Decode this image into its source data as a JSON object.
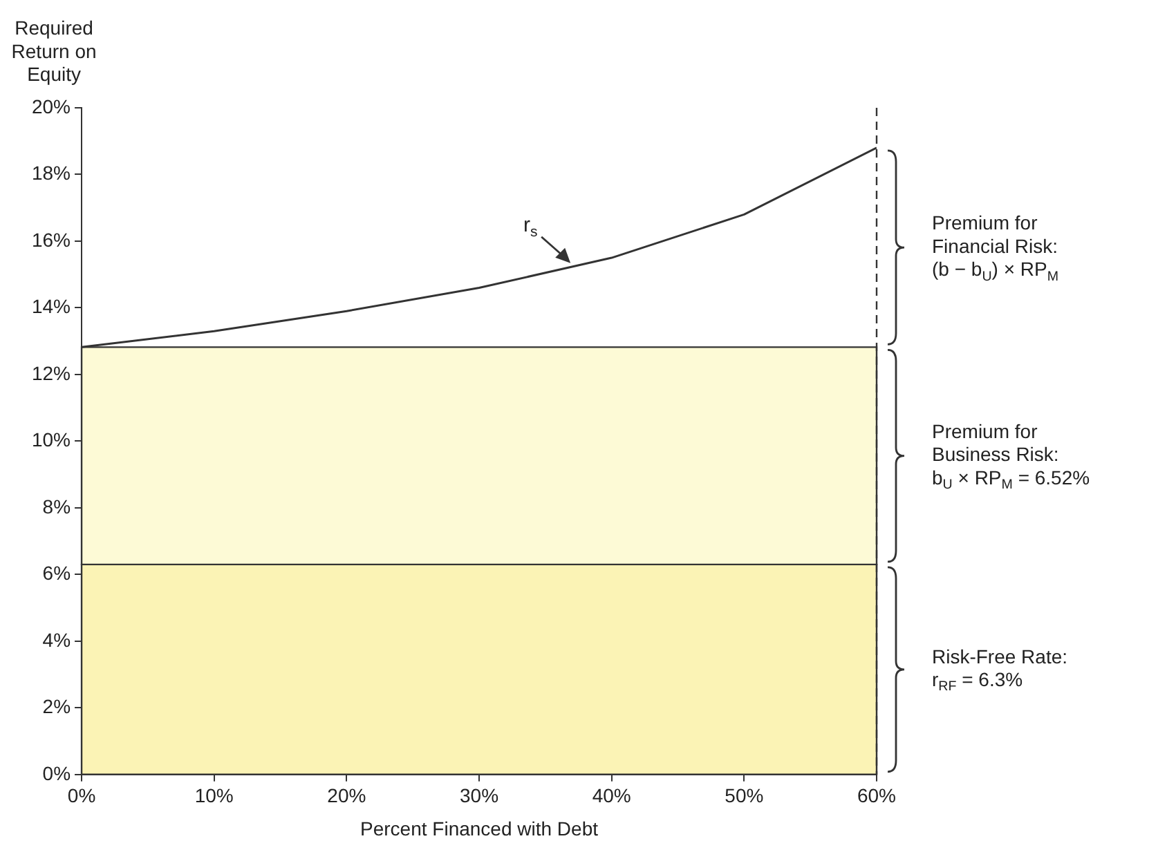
{
  "chart_data": {
    "type": "line",
    "xlabel": "Percent Financed with Debt",
    "ylabel": "Required\nReturn on\nEquity",
    "x": [
      0,
      10,
      20,
      30,
      40,
      50,
      60
    ],
    "series": [
      {
        "color": "#333333",
        "values": [
          12.82,
          13.3,
          13.9,
          14.6,
          15.5,
          16.8,
          18.8
        ]
      }
    ],
    "xlim": [
      0,
      60
    ],
    "ylim": [
      0,
      20
    ],
    "xticks": [
      {
        "value": 0,
        "label": "0%"
      },
      {
        "value": 10,
        "label": "10%"
      },
      {
        "value": 20,
        "label": "20%"
      },
      {
        "value": 30,
        "label": "30%"
      },
      {
        "value": 40,
        "label": "40%"
      },
      {
        "value": 50,
        "label": "50%"
      },
      {
        "value": 60,
        "label": "60%"
      }
    ],
    "yticks": [
      {
        "value": 0,
        "label": "0%"
      },
      {
        "value": 2,
        "label": "2%"
      },
      {
        "value": 4,
        "label": "4%"
      },
      {
        "value": 6,
        "label": "6%"
      },
      {
        "value": 8,
        "label": "8%"
      },
      {
        "value": 10,
        "label": "10%"
      },
      {
        "value": 12,
        "label": "12%"
      },
      {
        "value": 14,
        "label": "14%"
      },
      {
        "value": 16,
        "label": "16%"
      },
      {
        "value": 18,
        "label": "18%"
      },
      {
        "value": 20,
        "label": "20%"
      }
    ],
    "bands": [
      {
        "axis": "y",
        "from": 0,
        "to": 6.3,
        "label": "Risk-Free Rate:\nr$_{RF}$ = 6.3%",
        "color": "#fbf3b5"
      },
      {
        "axis": "y",
        "from": 6.3,
        "to": 12.82,
        "label": "Premium for\nBusiness Risk:\nb$_{U}$ × RP$_{M}$ = 6.52%",
        "color": "#fdfad6"
      }
    ],
    "ref_lines": [
      {
        "axis": "x",
        "value": 60,
        "line_style": "dashed",
        "color": "#333333"
      }
    ],
    "annotations": [
      {
        "text": "r$_{s}$",
        "x": 37,
        "y": 15.3
      },
      {
        "text": "Premium for\nFinancial Risk:\n(b − b$_{U}$) × RP$_{M}$",
        "x": 60,
        "y": 15.81
      }
    ],
    "grid": false,
    "legend": false,
    "marker": "none",
    "line_style": "solid"
  }
}
